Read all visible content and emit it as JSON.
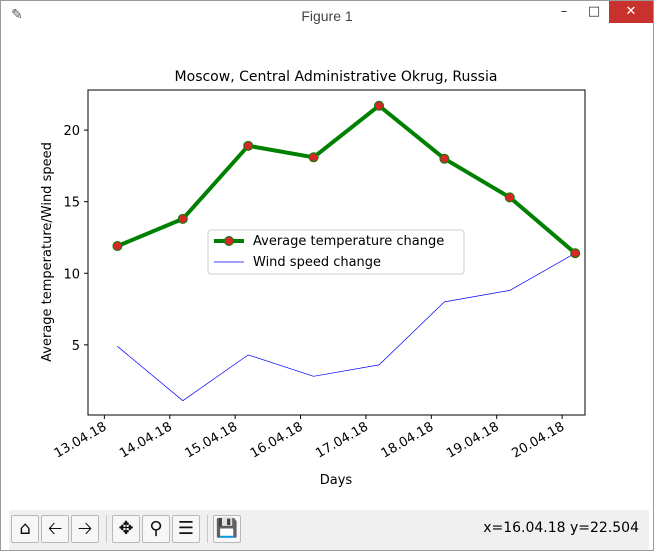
{
  "window": {
    "title": "Figure 1",
    "min_icon": "minimize-icon",
    "max_icon": "maximize-icon",
    "close_icon": "close-icon"
  },
  "toolbar": {
    "buttons": [
      "home-icon",
      "back-arrow-icon",
      "forward-arrow-icon",
      "pan-icon",
      "zoom-icon",
      "configure-subplots-icon",
      "save-icon"
    ],
    "coords": "x=16.04.18 y=22.504"
  },
  "chart_data": {
    "type": "line",
    "title": "Moscow, Central Administrative Okrug, Russia",
    "xlabel": "Days",
    "ylabel": "Average temperature/Wind speed",
    "x_ticks": [
      "13.04.18",
      "14.04.18",
      "15.04.18",
      "16.04.18",
      "17.04.18",
      "18.04.18",
      "19.04.18",
      "20.04.18"
    ],
    "x_tick_positions": [
      0,
      1,
      2,
      3,
      4,
      5,
      6,
      7
    ],
    "xlim": [
      -0.25,
      7.35
    ],
    "y_ticks": [
      5,
      10,
      15,
      20
    ],
    "ylim": [
      0.1,
      22.8
    ],
    "legend": "center",
    "series": [
      {
        "name": "Average temperature change",
        "x": [
          0.2,
          1.2,
          2.2,
          3.2,
          4.2,
          5.2,
          6.2,
          7.2
        ],
        "values": [
          11.9,
          13.8,
          18.9,
          18.1,
          21.7,
          18.0,
          15.3,
          11.4
        ],
        "color": "#008000",
        "marker_color": "#d62728",
        "linewidth": 4
      },
      {
        "name": "Wind speed change",
        "x": [
          0.2,
          1.2,
          2.2,
          3.2,
          4.2,
          5.2,
          6.2,
          7.2
        ],
        "values": [
          4.9,
          1.1,
          4.3,
          2.8,
          3.6,
          8.0,
          8.8,
          11.4
        ],
        "color": "#0000ff",
        "linewidth": 0.7
      }
    ]
  }
}
